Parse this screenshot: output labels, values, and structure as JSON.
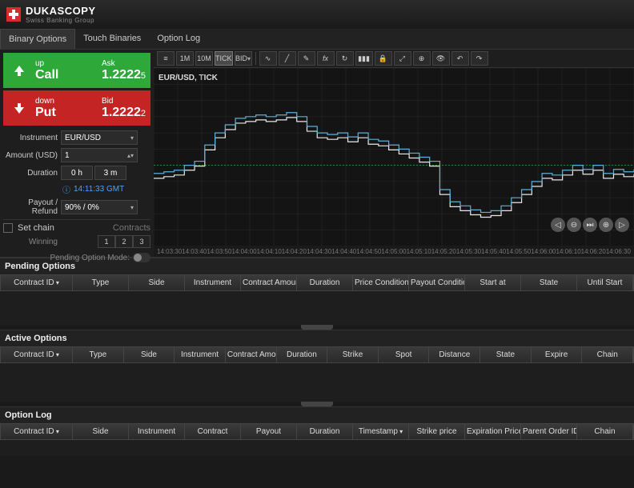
{
  "brand": {
    "main": "DUKASCOPY",
    "sub": "Swiss Banking Group"
  },
  "nav": {
    "items": [
      "Binary Options",
      "Touch Binaries",
      "Option Log"
    ],
    "active": 0
  },
  "call": {
    "dir": "up",
    "label": "Call",
    "priceLabel": "Ask",
    "price": "1.2222",
    "dec": "5"
  },
  "put": {
    "dir": "down",
    "label": "Put",
    "priceLabel": "Bid",
    "price": "1.2222",
    "dec": "2"
  },
  "form": {
    "instrumentLabel": "Instrument",
    "instrument": "EUR/USD",
    "amountLabel": "Amount (USD)",
    "amount": "1",
    "durationLabel": "Duration",
    "durH": "0 h",
    "durM": "3 m",
    "clock": "14:11:33 GMT",
    "payoutLabel": "Payout / Refund",
    "payout": "90% / 0%",
    "setChain": "Set chain",
    "contractsLabel": "Contracts",
    "winning": "Winning",
    "c1": "1",
    "c2": "2",
    "c3": "3",
    "pendingMode": "Pending Option Mode:"
  },
  "toolbar": {
    "tf": [
      "1M",
      "10M",
      "TICK"
    ],
    "bid": "BID",
    "activeTf": 2,
    "chartTitle": "EUR/USD, TICK"
  },
  "chart": {
    "xTicks": [
      "14:03:30",
      "14:03:40",
      "14:03:50",
      "14:04:00",
      "14:04:10",
      "14:04:20",
      "14:04:30",
      "14:04:40",
      "14:04:50",
      "14:05:00",
      "14:05:10",
      "14:05:20",
      "14:05:30",
      "14:05:40",
      "14:05:50",
      "14:06:00",
      "14:06:10",
      "14:06:20",
      "14:06:30"
    ],
    "colorLine1": "#5fb0d8",
    "colorLine2": "#e8e8e8",
    "grid": "#2a2a2a",
    "refLine": "#2fa83a",
    "points1": [
      130,
      128,
      126,
      120,
      115,
      95,
      80,
      70,
      62,
      60,
      58,
      60,
      58,
      55,
      60,
      72,
      80,
      82,
      80,
      85,
      80,
      88,
      90,
      95,
      100,
      105,
      110,
      115,
      150,
      165,
      170,
      175,
      178,
      176,
      170,
      160,
      150,
      140,
      130,
      132,
      126,
      120,
      125,
      120,
      130,
      125,
      128,
      125
    ],
    "points2": [
      136,
      134,
      132,
      126,
      121,
      101,
      86,
      76,
      68,
      66,
      64,
      66,
      64,
      61,
      66,
      78,
      86,
      88,
      86,
      91,
      86,
      94,
      96,
      101,
      106,
      111,
      116,
      121,
      156,
      171,
      176,
      181,
      184,
      182,
      176,
      166,
      156,
      146,
      136,
      138,
      132,
      126,
      131,
      126,
      136,
      131,
      134,
      131
    ]
  },
  "sections": {
    "pending": {
      "title": "Pending Options",
      "cols": [
        "Contract ID",
        "Type",
        "Side",
        "Instrument",
        "Contract Amount",
        "Duration",
        "Price Condition",
        "Payout Condition",
        "Start at",
        "State",
        "Until Start"
      ]
    },
    "active": {
      "title": "Active Options",
      "cols": [
        "Contract ID",
        "Type",
        "Side",
        "Instrument",
        "Contract Amount / Payout",
        "Duration",
        "Strike",
        "Spot",
        "Distance",
        "State",
        "Expire",
        "Chain"
      ]
    },
    "log": {
      "title": "Option Log",
      "cols": [
        "Contract ID",
        "Side",
        "Instrument",
        "Contract",
        "Payout",
        "Duration",
        "Timestamp",
        "Strike price",
        "Expiration Price",
        "Parent Order ID",
        "Chain"
      ]
    }
  }
}
